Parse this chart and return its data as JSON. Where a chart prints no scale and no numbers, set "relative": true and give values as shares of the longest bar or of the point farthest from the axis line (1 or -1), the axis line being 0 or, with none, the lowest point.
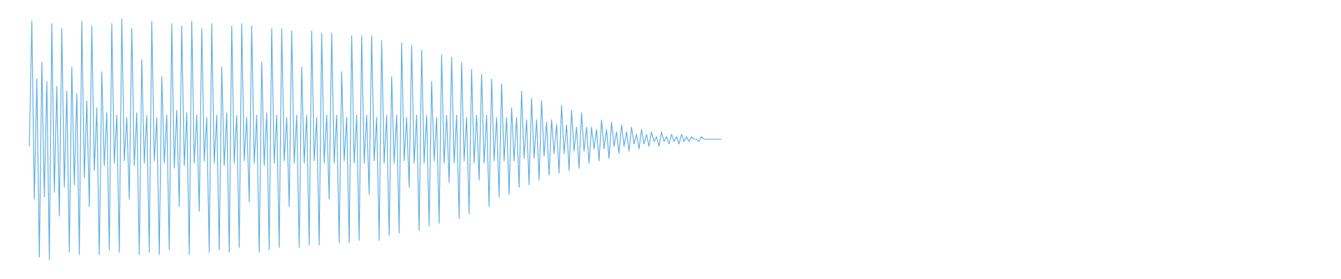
{
  "chart_data": {
    "type": "line",
    "relative": true,
    "color": "#5dade2",
    "categories": [
      null,
      null,
      null,
      null,
      null,
      null,
      null,
      null,
      null,
      null,
      null,
      null,
      null,
      null,
      null,
      null,
      null,
      null,
      null,
      null,
      null,
      null,
      null,
      null,
      null,
      null,
      null,
      null,
      null,
      null,
      null,
      null,
      null,
      null,
      null,
      null,
      null,
      null,
      null,
      null,
      null,
      null,
      null,
      null,
      null,
      null,
      null,
      null,
      null,
      null,
      null,
      null,
      null,
      null,
      null,
      null,
      null,
      null,
      null,
      null,
      null,
      null,
      null,
      null,
      null,
      null,
      null,
      null,
      null,
      null,
      null,
      null,
      null,
      null,
      null,
      null,
      null,
      null,
      null,
      null,
      null,
      null,
      null,
      null,
      null,
      null,
      null,
      null,
      null,
      null,
      null,
      null,
      null,
      null,
      null,
      null,
      null,
      null,
      null,
      null,
      null,
      null,
      null,
      null,
      null,
      null,
      null,
      null,
      null,
      null,
      null,
      null,
      null,
      null,
      null,
      null,
      null,
      null,
      null,
      null,
      null,
      null,
      null,
      null,
      null,
      null,
      null,
      null,
      null,
      null,
      null,
      null,
      null,
      null,
      null,
      null,
      null,
      null,
      null,
      null,
      null,
      null,
      null,
      null,
      null,
      null,
      null,
      null,
      null,
      null,
      null,
      null,
      null,
      null,
      null,
      null,
      null,
      null,
      null,
      null,
      null,
      null,
      null,
      null,
      null,
      null,
      null,
      null,
      null,
      null,
      null,
      null,
      null,
      null,
      null,
      null,
      null,
      null,
      null,
      null,
      null,
      null,
      null,
      null,
      null,
      null,
      null,
      null,
      null,
      null,
      null,
      null,
      null,
      null,
      null,
      null,
      null,
      null,
      null,
      null,
      null,
      null,
      null,
      null,
      null,
      null,
      null,
      null,
      null,
      null,
      null,
      null,
      null,
      null,
      null,
      null,
      null,
      null,
      null,
      null,
      null,
      null,
      null,
      null,
      null,
      null,
      null,
      null,
      null,
      null,
      null,
      null,
      null,
      null,
      null,
      null,
      null,
      null,
      null,
      null,
      null,
      null,
      null,
      null,
      null,
      null,
      null,
      null,
      null,
      null,
      null,
      null,
      null,
      null,
      null,
      null,
      null,
      null,
      null,
      null,
      null,
      null,
      null,
      null,
      null,
      null,
      null,
      null,
      null,
      null,
      null,
      null,
      null,
      null,
      null,
      null,
      null,
      null
    ],
    "values": [
      0.47,
      0.99,
      0.25,
      0.75,
      0.01,
      0.82,
      0.26,
      0.74,
      0.0,
      0.98,
      0.28,
      0.72,
      0.18,
      0.96,
      0.3,
      0.7,
      0.03,
      0.8,
      0.31,
      0.69,
      0.02,
      0.99,
      0.34,
      0.66,
      0.22,
      0.97,
      0.37,
      0.63,
      0.02,
      0.78,
      0.39,
      0.61,
      0.04,
      0.98,
      0.4,
      0.6,
      0.03,
      1.0,
      0.41,
      0.59,
      0.25,
      0.96,
      0.39,
      0.61,
      0.02,
      0.83,
      0.4,
      0.6,
      0.03,
      0.99,
      0.41,
      0.59,
      0.02,
      0.76,
      0.4,
      0.6,
      0.04,
      0.98,
      0.38,
      0.62,
      0.22,
      0.97,
      0.39,
      0.61,
      0.02,
      0.99,
      0.4,
      0.6,
      0.2,
      0.96,
      0.41,
      0.59,
      0.03,
      0.98,
      0.4,
      0.6,
      0.04,
      0.8,
      0.39,
      0.61,
      0.03,
      0.97,
      0.4,
      0.6,
      0.05,
      0.98,
      0.41,
      0.59,
      0.24,
      0.97,
      0.4,
      0.6,
      0.03,
      0.82,
      0.39,
      0.61,
      0.04,
      0.96,
      0.4,
      0.6,
      0.05,
      0.96,
      0.41,
      0.59,
      0.22,
      0.95,
      0.4,
      0.6,
      0.05,
      0.8,
      0.4,
      0.6,
      0.06,
      0.95,
      0.41,
      0.59,
      0.06,
      0.94,
      0.4,
      0.6,
      0.25,
      0.94,
      0.4,
      0.6,
      0.07,
      0.78,
      0.41,
      0.59,
      0.07,
      0.93,
      0.4,
      0.6,
      0.08,
      0.93,
      0.4,
      0.6,
      0.27,
      0.93,
      0.41,
      0.59,
      0.08,
      0.91,
      0.4,
      0.6,
      0.1,
      0.76,
      0.4,
      0.6,
      0.11,
      0.9,
      0.41,
      0.59,
      0.3,
      0.89,
      0.4,
      0.6,
      0.12,
      0.87,
      0.4,
      0.6,
      0.14,
      0.74,
      0.41,
      0.59,
      0.15,
      0.85,
      0.4,
      0.6,
      0.32,
      0.84,
      0.4,
      0.6,
      0.17,
      0.82,
      0.41,
      0.59,
      0.19,
      0.79,
      0.4,
      0.6,
      0.33,
      0.77,
      0.4,
      0.6,
      0.22,
      0.75,
      0.41,
      0.59,
      0.26,
      0.73,
      0.41,
      0.59,
      0.27,
      0.63,
      0.41,
      0.59,
      0.3,
      0.7,
      0.42,
      0.58,
      0.31,
      0.67,
      0.42,
      0.58,
      0.33,
      0.66,
      0.43,
      0.57,
      0.35,
      0.58,
      0.44,
      0.56,
      0.36,
      0.64,
      0.44,
      0.56,
      0.37,
      0.62,
      0.45,
      0.55,
      0.38,
      0.61,
      0.45,
      0.55,
      0.4,
      0.55,
      0.46,
      0.54,
      0.41,
      0.58,
      0.46,
      0.54,
      0.42,
      0.57,
      0.47,
      0.53,
      0.44,
      0.56,
      0.47,
      0.53,
      0.45,
      0.55,
      0.48,
      0.52,
      0.46,
      0.54,
      0.48,
      0.52,
      0.47,
      0.53,
      0.49,
      0.51,
      0.47,
      0.53,
      0.49,
      0.51,
      0.48,
      0.52,
      0.49,
      0.51,
      0.48,
      0.52,
      0.49,
      0.51,
      0.49,
      0.51,
      0.5,
      0.5,
      0.49,
      0.51,
      0.5,
      0.5,
      0.5,
      0.5,
      0.5,
      0.5,
      0.5,
      0.5
    ]
  }
}
